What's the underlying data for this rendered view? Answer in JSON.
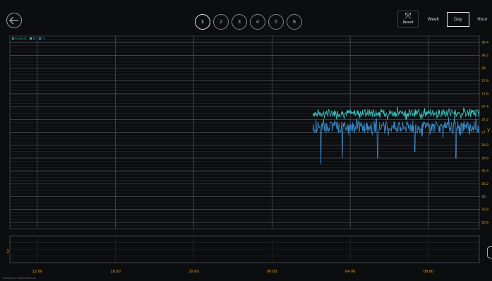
{
  "toolbar": {
    "pages": [
      "1",
      "2",
      "3",
      "4",
      "5",
      "6"
    ],
    "active_page": "1",
    "reset_label": "Reset",
    "ranges": [
      "Week",
      "Day",
      "Hour"
    ],
    "active_range": "Day"
  },
  "legend": [
    {
      "label": "Ambient",
      "color": "#2ba85a"
    },
    {
      "label": "T2",
      "color": "#3cc7c4"
    },
    {
      "label": "T1",
      "color": "#3a8fd1"
    }
  ],
  "footer": {
    "date_range": "2020/01/05 - 2020/01/06 15:52"
  },
  "navigator": {
    "label": "3"
  },
  "colors": {
    "background": "#0b0d0f",
    "grid_major": "#5c6268",
    "grid_minor": "#2a2f34",
    "tick_label": "#e0a12c",
    "t2": "#3cc7c4",
    "t1": "#3a8fd1"
  },
  "chart_data": {
    "type": "line",
    "xlabel": "",
    "ylabel": "",
    "x_ticks": [
      "12:00",
      "16:00",
      "20:00",
      "00:00",
      "04:00",
      "08:00"
    ],
    "y_ticks": [
      38.4,
      38.2,
      38,
      37.8,
      37.6,
      37.4,
      37.2,
      37,
      36.8,
      36.6,
      36.4,
      36.2,
      36,
      35.8,
      35.6
    ],
    "ylim": [
      35.5,
      38.5
    ],
    "xlim_hours": [
      10.6,
      34.6
    ],
    "grid": true,
    "series": [
      {
        "name": "T2",
        "color": "#3cc7c4",
        "x_start_hour": 26.1,
        "x_end_hour": 34.6,
        "mean": 37.3,
        "noise": 0.06,
        "spikes": []
      },
      {
        "name": "T1",
        "color": "#3a8fd1",
        "x_start_hour": 26.1,
        "x_end_hour": 34.6,
        "mean": 37.08,
        "noise": 0.09,
        "spikes": [
          [
            26.5,
            36.5
          ],
          [
            27.6,
            36.6
          ],
          [
            29.4,
            36.6
          ],
          [
            31.3,
            36.7
          ],
          [
            33.4,
            36.6
          ]
        ]
      }
    ]
  }
}
